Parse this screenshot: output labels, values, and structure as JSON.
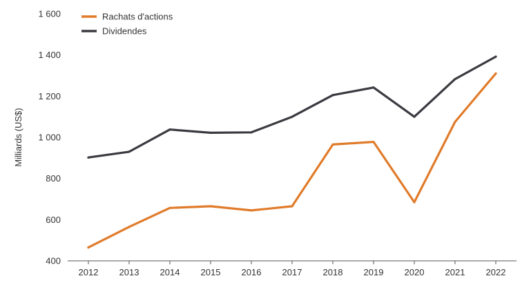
{
  "chart_data": {
    "type": "line",
    "title": "",
    "xlabel": "",
    "ylabel": "Milliards (US$)",
    "categories": [
      "2012",
      "2013",
      "2014",
      "2015",
      "2016",
      "2017",
      "2018",
      "2019",
      "2020",
      "2021",
      "2022"
    ],
    "ylim": [
      400,
      1600
    ],
    "yticks": [
      400,
      600,
      800,
      1000,
      1200,
      1400,
      1600
    ],
    "ytick_labels": [
      "400",
      "600",
      "800",
      "1 000",
      "1 200",
      "1 400",
      "1 600"
    ],
    "grid": false,
    "legend_position": "top-left",
    "series": [
      {
        "name": "Rachats d'actions",
        "color": "#E07B2A",
        "values": [
          465,
          565,
          657,
          665,
          645,
          665,
          965,
          978,
          685,
          1075,
          1310
        ]
      },
      {
        "name": "Dividendes",
        "color": "#3A3A40",
        "values": [
          902,
          930,
          1038,
          1022,
          1024,
          1100,
          1205,
          1242,
          1100,
          1283,
          1392
        ]
      }
    ]
  }
}
